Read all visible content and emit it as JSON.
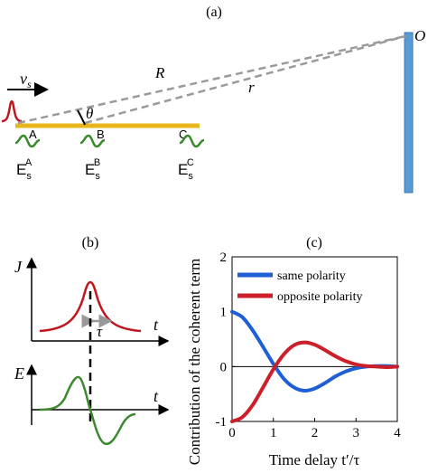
{
  "panels": {
    "a": {
      "label": "(a)",
      "velocity_symbol": "v",
      "velocity_subscript": "s",
      "distance_R": "R",
      "distance_r": "r",
      "angle": "θ",
      "observer": "O",
      "points": [
        "A",
        "B",
        "C"
      ],
      "field_base": "E",
      "field_subscript": "s",
      "colors": {
        "source_pulse": "#c0161d",
        "filament": "#e8b51a",
        "wave": "#3b8a2e",
        "observer_bar": "#5b9bd5",
        "dashed": "#9a9a9a"
      }
    },
    "b": {
      "label": "(b)",
      "j_axis": "J",
      "e_axis": "E",
      "t_axis": "t",
      "tau": "τ"
    },
    "c": {
      "label": "(c)",
      "ylabel": "Contribution of the coherent term",
      "xlabel": "Time delay t′/τ"
    }
  },
  "chart_data": {
    "type": "line",
    "title": "",
    "xlabel": "Time delay t′/τ",
    "ylabel": "Contribution of the coherent term",
    "xlim": [
      0,
      4
    ],
    "ylim": [
      -1,
      2
    ],
    "xticks": [
      "0",
      "1",
      "2",
      "3",
      "4"
    ],
    "yticks": [
      "-1",
      "0",
      "1",
      "2"
    ],
    "legend_position": "top-right",
    "grid": false,
    "x": [
      0,
      0.25,
      0.5,
      0.75,
      1.0,
      1.25,
      1.5,
      1.75,
      2.0,
      2.25,
      2.5,
      2.75,
      3.0,
      3.25,
      3.5,
      3.75,
      4.0
    ],
    "series": [
      {
        "name": "same polarity",
        "color": "#1f5fd6",
        "values": [
          1.0,
          0.9,
          0.66,
          0.36,
          0.05,
          -0.22,
          -0.38,
          -0.44,
          -0.4,
          -0.3,
          -0.18,
          -0.09,
          -0.03,
          0.0,
          0.01,
          0.01,
          0.0
        ]
      },
      {
        "name": "opposite polarity",
        "color": "#cc1f2a",
        "values": [
          -1.0,
          -0.92,
          -0.7,
          -0.38,
          -0.05,
          0.22,
          0.39,
          0.44,
          0.4,
          0.3,
          0.19,
          0.1,
          0.04,
          0.01,
          0.0,
          -0.01,
          0.0
        ]
      }
    ]
  }
}
